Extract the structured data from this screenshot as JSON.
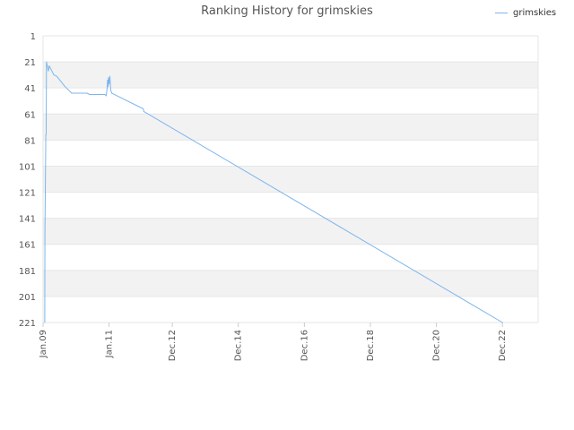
{
  "chart_data": {
    "type": "line",
    "title": "Ranking History for grimskies",
    "xlabel": "",
    "ylabel": "",
    "y_inverted": true,
    "ylim": [
      1,
      221
    ],
    "y_ticks": [
      1,
      21,
      41,
      61,
      81,
      101,
      121,
      141,
      161,
      181,
      201,
      221
    ],
    "xlim": [
      "2009-01-01",
      "2023-12-31"
    ],
    "x_ticks": [
      {
        "date": "2009-01-01",
        "label": "Jan.09"
      },
      {
        "date": "2011-01-01",
        "label": "Jan.11"
      },
      {
        "date": "2012-12-01",
        "label": "Dec.12"
      },
      {
        "date": "2014-12-01",
        "label": "Dec.14"
      },
      {
        "date": "2016-12-01",
        "label": "Dec.16"
      },
      {
        "date": "2018-12-01",
        "label": "Dec.18"
      },
      {
        "date": "2020-12-01",
        "label": "Dec.20"
      },
      {
        "date": "2022-12-01",
        "label": "Dec.22"
      }
    ],
    "grid": "alternating horizontal bands",
    "legend_position": "top-right",
    "series": [
      {
        "name": "grimskies",
        "color": "#7cb5ec",
        "points": [
          [
            "2009-01-20",
            221
          ],
          [
            "2009-01-22",
            150
          ],
          [
            "2009-02-01",
            77
          ],
          [
            "2009-02-05",
            77
          ],
          [
            "2009-02-08",
            21
          ],
          [
            "2009-02-20",
            25
          ],
          [
            "2009-03-01",
            28
          ],
          [
            "2009-03-10",
            24
          ],
          [
            "2009-04-01",
            27
          ],
          [
            "2009-05-01",
            31
          ],
          [
            "2009-06-01",
            32
          ],
          [
            "2009-09-01",
            40
          ],
          [
            "2009-11-15",
            45
          ],
          [
            "2010-02-01",
            45
          ],
          [
            "2010-05-01",
            45
          ],
          [
            "2010-06-01",
            46
          ],
          [
            "2010-11-15",
            46
          ],
          [
            "2010-12-01",
            47
          ],
          [
            "2010-12-10",
            42
          ],
          [
            "2010-12-15",
            35
          ],
          [
            "2010-12-20",
            40
          ],
          [
            "2010-12-25",
            33
          ],
          [
            "2011-01-01",
            38
          ],
          [
            "2011-01-10",
            32
          ],
          [
            "2011-01-20",
            43
          ],
          [
            "2011-02-01",
            45
          ],
          [
            "2012-01-15",
            57
          ],
          [
            "2012-01-20",
            59
          ],
          [
            "2022-12-01",
            221
          ]
        ]
      }
    ]
  }
}
